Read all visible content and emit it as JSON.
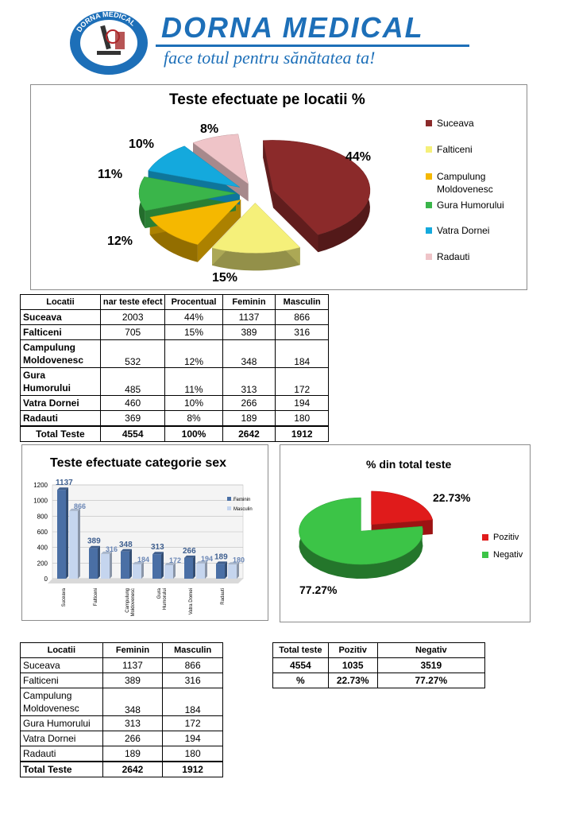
{
  "header": {
    "brand": "DORNA MEDICAL",
    "slogan": "face totul pentru sănătatea ta!",
    "logo_ring_text": "DORNA MEDICAL"
  },
  "colors": {
    "brand_blue": "#1d6fb8",
    "suceava": "#8b2a2a",
    "falticeni": "#f5f07a",
    "campulung": "#f5b800",
    "gura": "#3ab54a",
    "vatra": "#14a9dd",
    "radauti": "#efc4c8",
    "feminin": "#4a6fa5",
    "masculin": "#c5d5ee",
    "pozitiv": "#e01b1b",
    "negativ": "#3cc447"
  },
  "chart_data": [
    {
      "type": "pie",
      "title": "Teste efectuate pe locatii  %",
      "categories": [
        "Suceava",
        "Falticeni",
        "Campulung Moldovenesc",
        "Gura Humorului",
        "Vatra Dornei",
        "Radauti"
      ],
      "values": [
        44,
        15,
        12,
        11,
        10,
        8
      ],
      "data_labels": [
        "44%",
        "15%",
        "12%",
        "11%",
        "10%",
        "8%"
      ],
      "legend_placement": "right"
    },
    {
      "type": "bar",
      "title": "Teste efectuate categorie sex",
      "categories": [
        "Suceava",
        "Falticeni",
        "Campulung Moldovenesc",
        "Gura Humorului",
        "Vatra Dornei",
        "Radauti"
      ],
      "series": [
        {
          "name": "Feminin",
          "values": [
            1137,
            389,
            348,
            313,
            266,
            189
          ]
        },
        {
          "name": "Masculin",
          "values": [
            866,
            316,
            184,
            172,
            194,
            180
          ]
        }
      ],
      "ylim": [
        0,
        1200
      ],
      "yticks": [
        "0",
        "200",
        "400",
        "600",
        "800",
        "1000",
        "1200"
      ],
      "grid": true,
      "legend_placement": "right"
    },
    {
      "type": "pie",
      "title": "% din total teste",
      "categories": [
        "Pozitiv",
        "Negativ"
      ],
      "values": [
        22.73,
        77.27
      ],
      "data_labels": [
        "22.73%",
        "77.27%"
      ],
      "legend_placement": "right"
    }
  ],
  "table1": {
    "headers": [
      "Locatii",
      "nar teste efect",
      "Procentual",
      "Feminin",
      "Masculin"
    ],
    "rows": [
      {
        "loc": "Suceava",
        "teste": "2003",
        "proc": "44%",
        "fem": "1137",
        "masc": "866"
      },
      {
        "loc": "Falticeni",
        "teste": "705",
        "proc": "15%",
        "fem": "389",
        "masc": "316"
      },
      {
        "loc": "Campulung",
        "loc2": "Moldovenesc",
        "teste": "532",
        "proc": "12%",
        "fem": "348",
        "masc": "184"
      },
      {
        "loc": "Gura",
        "loc2": "Humorului",
        "teste": "485",
        "proc": "11%",
        "fem": "313",
        "masc": "172"
      },
      {
        "loc": "Vatra Dornei",
        "teste": "460",
        "proc": "10%",
        "fem": "266",
        "masc": "194"
      },
      {
        "loc": "Radauti",
        "teste": "369",
        "proc": "8%",
        "fem": "189",
        "masc": "180"
      }
    ],
    "total": {
      "loc": "Total Teste",
      "teste": "4554",
      "proc": "100%",
      "fem": "2642",
      "masc": "1912"
    }
  },
  "table2": {
    "headers": [
      "Locatii",
      "Feminin",
      "Masculin"
    ],
    "rows": [
      {
        "loc": "Suceava",
        "fem": "1137",
        "masc": "866"
      },
      {
        "loc": "Falticeni",
        "fem": "389",
        "masc": "316"
      },
      {
        "loc": "Campulung",
        "loc2": "Moldovenesc",
        "fem": "348",
        "masc": "184"
      },
      {
        "loc": "Gura Humorului",
        "fem": "313",
        "masc": "172"
      },
      {
        "loc": "Vatra Dornei",
        "fem": "266",
        "masc": "194"
      },
      {
        "loc": "Radauti",
        "fem": "189",
        "masc": "180"
      }
    ],
    "total": {
      "loc": "Total Teste",
      "fem": "2642",
      "masc": "1912"
    }
  },
  "table3": {
    "headers": [
      "Total teste",
      "Pozitiv",
      "Negativ"
    ],
    "row1": [
      "4554",
      "1035",
      "3519"
    ],
    "row2": [
      "%",
      "22.73%",
      "77.27%"
    ]
  }
}
